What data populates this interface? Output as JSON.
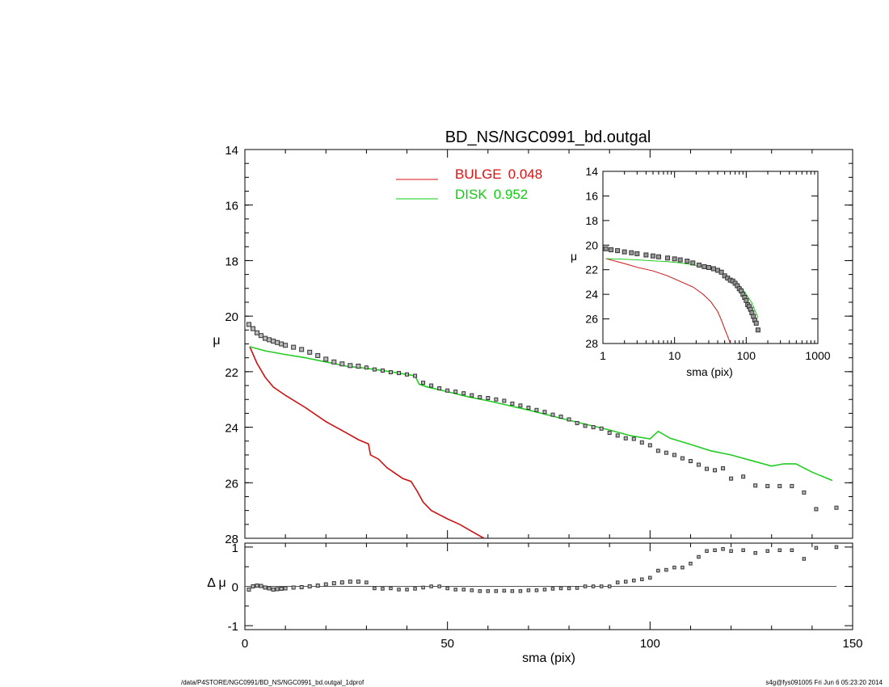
{
  "chart_data": [
    {
      "id": "main",
      "type": "line+scatter",
      "title": "BD_NS/NGC0991_bd.outgal",
      "xlabel": "",
      "ylabel": "μ",
      "xlim": [
        0,
        150
      ],
      "ylim": [
        28,
        14
      ],
      "y_inverted": true,
      "yticks": [
        14,
        16,
        18,
        20,
        22,
        24,
        26,
        28
      ],
      "legend": {
        "placement": "top-center",
        "entries": [
          {
            "label": "BULGE",
            "value": "0.048",
            "color": "#dd1111"
          },
          {
            "label": "DISK",
            "value": "0.952",
            "color": "#11cc11"
          }
        ]
      },
      "series": [
        {
          "name": "BULGE",
          "kind": "line",
          "color": "#cc1111",
          "x": [
            1.2,
            3,
            5,
            7,
            10,
            15,
            20,
            25,
            28,
            30.5,
            31,
            33,
            35,
            37,
            39,
            41,
            42.5,
            44,
            46,
            48,
            50,
            53,
            56,
            59
          ],
          "y": [
            21.1,
            21.7,
            22.2,
            22.55,
            22.85,
            23.3,
            23.8,
            24.2,
            24.45,
            24.6,
            25.0,
            25.15,
            25.45,
            25.65,
            25.85,
            25.95,
            26.3,
            26.7,
            27.0,
            27.15,
            27.3,
            27.5,
            27.75,
            28.0
          ]
        },
        {
          "name": "DISK",
          "kind": "line",
          "color": "#22cc22",
          "x": [
            1.2,
            5,
            10,
            15,
            20,
            25,
            30,
            35,
            40,
            42,
            43,
            45,
            50,
            55,
            60,
            70,
            80,
            90,
            95,
            100,
            102,
            105,
            110,
            115,
            120,
            125,
            130,
            133,
            136,
            140,
            145
          ],
          "y": [
            21.1,
            21.25,
            21.38,
            21.5,
            21.65,
            21.8,
            21.88,
            21.98,
            22.1,
            22.15,
            22.45,
            22.55,
            22.72,
            22.9,
            23.05,
            23.38,
            23.75,
            24.1,
            24.3,
            24.42,
            24.15,
            24.4,
            24.62,
            24.85,
            25.0,
            25.2,
            25.4,
            25.32,
            25.32,
            25.62,
            25.92
          ]
        },
        {
          "name": "data",
          "kind": "points",
          "color": "#444444",
          "x": [
            1,
            2,
            3,
            4,
            5,
            6,
            7,
            8,
            9,
            10,
            12,
            14,
            16,
            18,
            20,
            22,
            24,
            26,
            28,
            30,
            32,
            34,
            36,
            38,
            40,
            42,
            44,
            46,
            48,
            50,
            52,
            54,
            56,
            58,
            60,
            62,
            64,
            66,
            68,
            70,
            72,
            74,
            76,
            78,
            80,
            82,
            84,
            86,
            88,
            90,
            92,
            94,
            96,
            98,
            100,
            102,
            104,
            106,
            108,
            110,
            112,
            114,
            116,
            118,
            120,
            123,
            126,
            129,
            132,
            135,
            138,
            141,
            146
          ],
          "y": [
            20.3,
            20.45,
            20.6,
            20.7,
            20.8,
            20.85,
            20.9,
            20.95,
            21.0,
            21.05,
            21.12,
            21.2,
            21.3,
            21.42,
            21.55,
            21.65,
            21.72,
            21.78,
            21.8,
            21.85,
            21.92,
            21.96,
            22.02,
            22.05,
            22.1,
            22.15,
            22.4,
            22.5,
            22.6,
            22.68,
            22.72,
            22.78,
            22.85,
            22.92,
            22.95,
            23.0,
            23.05,
            23.15,
            23.22,
            23.3,
            23.38,
            23.45,
            23.55,
            23.62,
            23.72,
            23.85,
            23.95,
            24.0,
            24.05,
            24.2,
            24.3,
            24.4,
            24.42,
            24.55,
            24.65,
            24.85,
            24.92,
            25.0,
            25.12,
            25.22,
            25.35,
            25.5,
            25.55,
            25.48,
            25.85,
            25.78,
            26.1,
            26.12,
            26.12,
            26.12,
            26.35,
            26.95,
            26.9
          ]
        }
      ]
    },
    {
      "id": "inset",
      "type": "line+scatter",
      "title": "",
      "xlabel": "sma (pix)",
      "ylabel": "μ",
      "xscale": "log",
      "xlim": [
        1,
        1000
      ],
      "ylim": [
        28,
        14
      ],
      "y_inverted": true,
      "yticks": [
        14,
        16,
        18,
        20,
        22,
        24,
        26,
        28
      ],
      "xticks": [
        1,
        10,
        100,
        1000
      ],
      "series": [
        {
          "name": "BULGE",
          "kind": "line",
          "color": "#cc1111",
          "x": [
            1.1,
            2,
            3,
            5,
            8,
            12,
            18,
            25,
            32,
            40,
            45,
            50,
            55,
            60
          ],
          "y": [
            21.1,
            21.5,
            21.8,
            22.1,
            22.5,
            22.95,
            23.4,
            24.0,
            24.6,
            25.4,
            26.1,
            26.8,
            27.4,
            28.0
          ]
        },
        {
          "name": "DISK",
          "kind": "line",
          "color": "#22cc22",
          "x": [
            1.1,
            2,
            3,
            5,
            8,
            12,
            18,
            25,
            32,
            40,
            50,
            60,
            70,
            80,
            100,
            120,
            146
          ],
          "y": [
            21.1,
            21.15,
            21.2,
            21.28,
            21.35,
            21.45,
            21.6,
            21.8,
            21.9,
            22.05,
            22.45,
            22.75,
            23.0,
            23.25,
            24.0,
            24.7,
            25.9
          ]
        },
        {
          "name": "data",
          "kind": "points",
          "color": "#444444",
          "x": [
            1.1,
            1.3,
            1.6,
            2,
            2.5,
            3,
            4,
            5,
            6,
            8,
            10,
            12,
            15,
            18,
            22,
            26,
            30,
            35,
            40,
            45,
            50,
            55,
            60,
            65,
            70,
            75,
            80,
            85,
            90,
            95,
            100,
            105,
            110,
            115,
            120,
            126,
            132,
            138,
            146
          ],
          "y": [
            20.3,
            20.38,
            20.45,
            20.55,
            20.62,
            20.7,
            20.8,
            20.88,
            20.95,
            21.05,
            21.12,
            21.2,
            21.3,
            21.45,
            21.62,
            21.75,
            21.82,
            21.92,
            22.05,
            22.2,
            22.5,
            22.68,
            22.85,
            22.92,
            23.1,
            23.3,
            23.55,
            23.72,
            24.0,
            24.25,
            24.5,
            24.85,
            25.0,
            25.22,
            25.5,
            25.8,
            26.1,
            26.35,
            26.9
          ]
        }
      ]
    },
    {
      "id": "residual",
      "type": "scatter",
      "title": "",
      "xlabel": "sma (pix)",
      "ylabel": "Δ μ",
      "xlim": [
        0,
        150
      ],
      "ylim": [
        -1.1,
        1.1
      ],
      "yticks": [
        -1,
        0,
        1
      ],
      "xticks": [
        0,
        50,
        100,
        150
      ],
      "zero_line": true,
      "series": [
        {
          "name": "residual",
          "kind": "points",
          "color": "#444444",
          "x": [
            1,
            2,
            3,
            4,
            5,
            6,
            7,
            8,
            9,
            10,
            12,
            14,
            16,
            18,
            20,
            22,
            24,
            26,
            28,
            30,
            32,
            34,
            36,
            38,
            40,
            42,
            44,
            46,
            48,
            50,
            52,
            54,
            56,
            58,
            60,
            62,
            64,
            66,
            68,
            70,
            72,
            74,
            76,
            78,
            80,
            82,
            84,
            86,
            88,
            90,
            92,
            94,
            96,
            98,
            100,
            102,
            104,
            106,
            108,
            110,
            112,
            114,
            116,
            118,
            120,
            123,
            126,
            129,
            132,
            135,
            138,
            141,
            146
          ],
          "y": [
            -0.08,
            0.0,
            0.02,
            0.01,
            -0.03,
            -0.05,
            -0.08,
            -0.07,
            -0.06,
            -0.05,
            -0.03,
            -0.02,
            0.0,
            0.02,
            0.05,
            0.08,
            0.1,
            0.12,
            0.12,
            0.1,
            -0.05,
            -0.06,
            -0.05,
            -0.08,
            -0.08,
            -0.06,
            -0.03,
            0.0,
            0.0,
            -0.05,
            -0.08,
            -0.08,
            -0.1,
            -0.12,
            -0.12,
            -0.12,
            -0.11,
            -0.12,
            -0.12,
            -0.1,
            -0.1,
            -0.08,
            -0.06,
            -0.05,
            -0.05,
            -0.04,
            0.0,
            0.0,
            0.0,
            0.0,
            0.1,
            0.12,
            0.15,
            0.18,
            0.22,
            0.4,
            0.42,
            0.48,
            0.48,
            0.58,
            0.75,
            0.9,
            0.92,
            0.95,
            0.9,
            0.92,
            0.85,
            0.9,
            0.92,
            0.92,
            0.7,
            0.98,
            1.0
          ]
        }
      ]
    }
  ],
  "footer": {
    "left": "/data/P4STORE/NGC0991/BD_NS/NGC0991_bd.outgal_1dprof",
    "right": "s4g@fys091005  Fri Jun  6 05:23:20 2014"
  }
}
